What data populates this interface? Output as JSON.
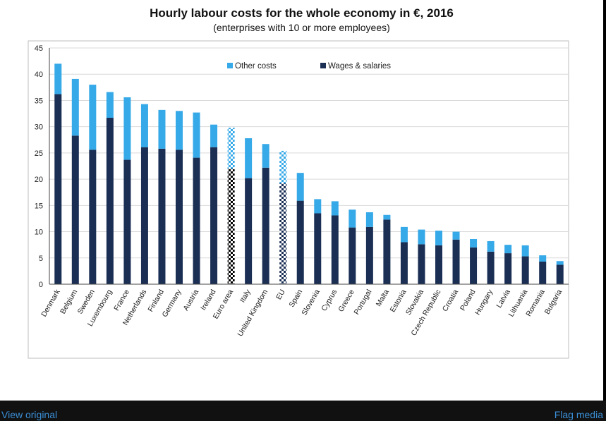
{
  "chart_data": {
    "type": "bar",
    "stacked": true,
    "title": "Hourly labour costs for the whole economy in €, 2016",
    "subtitle": "(enterprises with 10 or more employees)",
    "xlabel": "",
    "ylabel": "",
    "ylim": [
      0,
      45
    ],
    "yticks": [
      0,
      5,
      10,
      15,
      20,
      25,
      30,
      35,
      40,
      45
    ],
    "legend_position": "top",
    "categories": [
      "Denmark",
      "Belgium",
      "Sweden",
      "Luxembourg",
      "France",
      "Netherlands",
      "Finland",
      "Germany",
      "Austria",
      "Ireland",
      "Euro area",
      "Italy",
      "United Kingdom",
      "EU",
      "Spain",
      "Slovenia",
      "Cyprus",
      "Greece",
      "Portugal",
      "Malta",
      "Estonia",
      "Slovakia",
      "Czech Republic",
      "Croatia",
      "Poland",
      "Hungary",
      "Latvia",
      "Lithuania",
      "Romania",
      "Bulgaria"
    ],
    "aggregates": [
      "Euro area",
      "EU"
    ],
    "series": [
      {
        "name": "Wages & salaries",
        "color": "#1b2f55",
        "values": [
          36.2,
          28.3,
          25.6,
          31.7,
          23.7,
          26.1,
          25.8,
          25.6,
          24.1,
          26.1,
          22.0,
          20.2,
          22.2,
          19.2,
          15.9,
          13.5,
          13.1,
          10.8,
          10.9,
          12.3,
          8.0,
          7.6,
          7.4,
          8.5,
          7.0,
          6.2,
          5.9,
          5.3,
          4.3,
          3.7
        ]
      },
      {
        "name": "Other costs",
        "color": "#36a9e8",
        "values": [
          5.8,
          10.8,
          12.4,
          4.9,
          11.9,
          8.2,
          7.4,
          7.4,
          8.6,
          4.3,
          7.8,
          7.6,
          4.5,
          6.2,
          5.3,
          2.7,
          2.7,
          3.4,
          2.8,
          0.9,
          2.9,
          2.8,
          2.8,
          1.5,
          1.6,
          2.0,
          1.6,
          2.1,
          1.2,
          0.7
        ]
      }
    ]
  },
  "footer": {
    "view_original": "View original",
    "flag_media": "Flag media"
  }
}
